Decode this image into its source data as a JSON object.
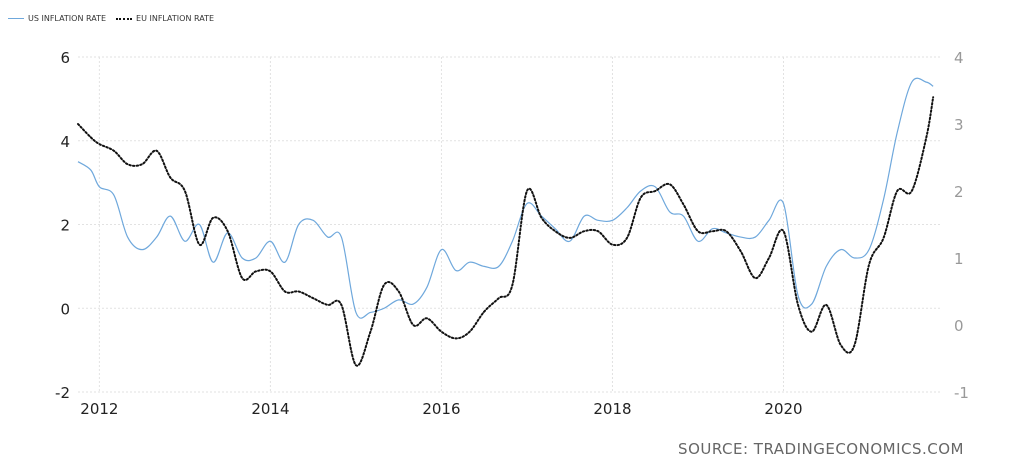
{
  "legend": {
    "series": [
      {
        "name": "US INFLATION RATE",
        "color": "#6fa8dc",
        "style": "solid"
      },
      {
        "name": "EU INFLATION RATE",
        "color": "#111111",
        "style": "dotted"
      }
    ],
    "placement": "top-left"
  },
  "source": "SOURCE: TRADINGECONOMICS.COM",
  "chart_data": {
    "type": "line",
    "title": "",
    "xlabel": "",
    "ylabel": "",
    "xlim": [
      2011.75,
      2021.83
    ],
    "x_ticks": [
      2012,
      2014,
      2016,
      2018,
      2020
    ],
    "y_left": {
      "ylim": [
        -2,
        6
      ],
      "ticks": [
        -2,
        0,
        2,
        4,
        6
      ],
      "series": "US INFLATION RATE"
    },
    "y_right": {
      "ylim": [
        -1,
        4
      ],
      "ticks": [
        -1,
        0,
        1,
        2,
        3,
        4
      ],
      "series": "EU INFLATION RATE"
    },
    "grid": true,
    "series": [
      {
        "name": "US INFLATION RATE",
        "axis": "left",
        "x": [
          2011.75,
          2011.9,
          2012.0,
          2012.17,
          2012.33,
          2012.5,
          2012.67,
          2012.83,
          2013.0,
          2013.17,
          2013.33,
          2013.5,
          2013.67,
          2013.83,
          2014.0,
          2014.17,
          2014.33,
          2014.5,
          2014.67,
          2014.83,
          2015.0,
          2015.17,
          2015.33,
          2015.5,
          2015.67,
          2015.83,
          2016.0,
          2016.17,
          2016.33,
          2016.5,
          2016.67,
          2016.83,
          2017.0,
          2017.17,
          2017.33,
          2017.5,
          2017.67,
          2017.83,
          2018.0,
          2018.17,
          2018.33,
          2018.5,
          2018.67,
          2018.83,
          2019.0,
          2019.17,
          2019.33,
          2019.5,
          2019.67,
          2019.83,
          2020.0,
          2020.17,
          2020.33,
          2020.5,
          2020.67,
          2020.83,
          2021.0,
          2021.17,
          2021.33,
          2021.5,
          2021.67,
          2021.75
        ],
        "y": [
          3.5,
          3.3,
          2.9,
          2.7,
          1.7,
          1.4,
          1.7,
          2.2,
          1.6,
          2.0,
          1.1,
          1.8,
          1.2,
          1.2,
          1.6,
          1.1,
          2.0,
          2.1,
          1.7,
          1.7,
          -0.1,
          -0.1,
          0.0,
          0.2,
          0.1,
          0.5,
          1.4,
          0.9,
          1.1,
          1.0,
          1.0,
          1.6,
          2.5,
          2.2,
          1.9,
          1.6,
          2.2,
          2.1,
          2.1,
          2.4,
          2.8,
          2.9,
          2.3,
          2.2,
          1.6,
          1.9,
          1.8,
          1.7,
          1.7,
          2.1,
          2.5,
          0.3,
          0.1,
          1.0,
          1.4,
          1.2,
          1.4,
          2.6,
          4.2,
          5.4,
          5.4,
          5.3
        ]
      },
      {
        "name": "EU INFLATION RATE",
        "axis": "right",
        "x": [
          2011.75,
          2011.9,
          2012.0,
          2012.17,
          2012.33,
          2012.5,
          2012.67,
          2012.83,
          2013.0,
          2013.17,
          2013.33,
          2013.5,
          2013.67,
          2013.83,
          2014.0,
          2014.17,
          2014.33,
          2014.5,
          2014.67,
          2014.83,
          2015.0,
          2015.17,
          2015.33,
          2015.5,
          2015.67,
          2015.83,
          2016.0,
          2016.17,
          2016.33,
          2016.5,
          2016.67,
          2016.83,
          2017.0,
          2017.17,
          2017.33,
          2017.5,
          2017.67,
          2017.83,
          2018.0,
          2018.17,
          2018.33,
          2018.5,
          2018.67,
          2018.83,
          2019.0,
          2019.17,
          2019.33,
          2019.5,
          2019.67,
          2019.83,
          2020.0,
          2020.17,
          2020.33,
          2020.5,
          2020.67,
          2020.83,
          2021.0,
          2021.17,
          2021.33,
          2021.5,
          2021.67,
          2021.75
        ],
        "y": [
          3.0,
          2.8,
          2.7,
          2.6,
          2.4,
          2.4,
          2.6,
          2.2,
          2.0,
          1.2,
          1.6,
          1.4,
          0.7,
          0.8,
          0.8,
          0.5,
          0.5,
          0.4,
          0.3,
          0.3,
          -0.6,
          -0.1,
          0.6,
          0.5,
          0.0,
          0.1,
          -0.1,
          -0.2,
          -0.1,
          0.2,
          0.4,
          0.6,
          2.0,
          1.6,
          1.4,
          1.3,
          1.4,
          1.4,
          1.2,
          1.3,
          1.9,
          2.0,
          2.1,
          1.8,
          1.4,
          1.4,
          1.4,
          1.1,
          0.7,
          1.0,
          1.4,
          0.3,
          -0.1,
          0.3,
          -0.3,
          -0.3,
          0.9,
          1.3,
          2.0,
          2.0,
          2.8,
          3.4
        ]
      }
    ]
  }
}
